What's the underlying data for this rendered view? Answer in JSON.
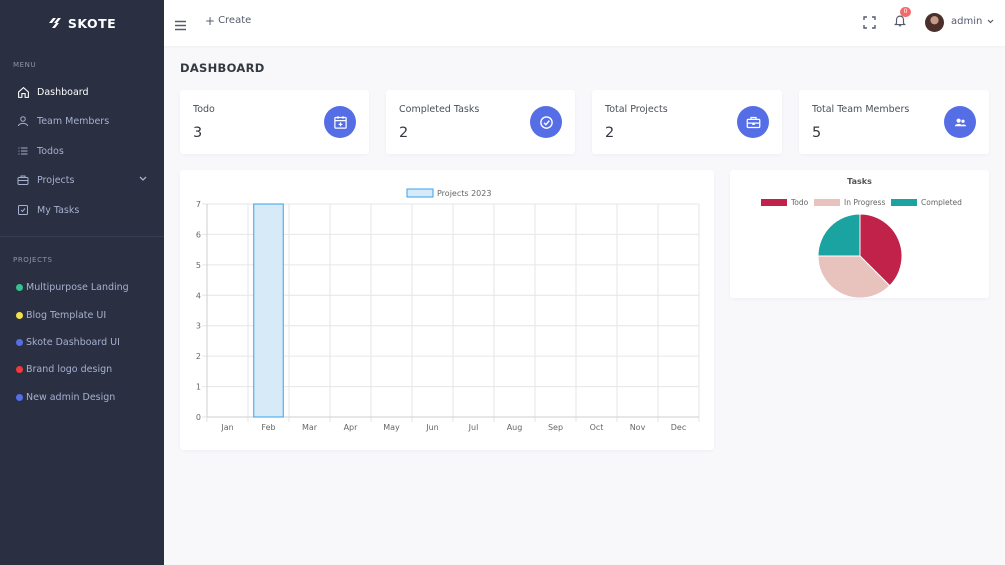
{
  "brand": {
    "name": "SKOTE"
  },
  "sidebar": {
    "menu_title": "MENU",
    "items": [
      {
        "label": "Dashboard",
        "icon": "home-icon",
        "active": true
      },
      {
        "label": "Team Members",
        "icon": "user-icon"
      },
      {
        "label": "Todos",
        "icon": "list-icon"
      },
      {
        "label": "Projects",
        "icon": "briefcase-icon",
        "has_submenu": true
      },
      {
        "label": "My Tasks",
        "icon": "task-checkbox-icon"
      }
    ],
    "projects_title": "PROJECTS",
    "projects": [
      {
        "label": "Multipurpose Landing",
        "color": "#34c38f"
      },
      {
        "label": "Blog Template UI",
        "color": "#f1e14b"
      },
      {
        "label": "Skote Dashboard UI",
        "color": "#556ee6"
      },
      {
        "label": "Brand logo design",
        "color": "#f23a3a"
      },
      {
        "label": "New admin Design",
        "color": "#556ee6"
      }
    ]
  },
  "topbar": {
    "create_label": "Create",
    "notification_count": "0",
    "user_name": "admin"
  },
  "page": {
    "title": "DASHBOARD"
  },
  "stats": [
    {
      "label": "Todo",
      "value": "3",
      "icon": "calendar-plus-icon"
    },
    {
      "label": "Completed Tasks",
      "value": "2",
      "icon": "check-circle-icon"
    },
    {
      "label": "Total Projects",
      "value": "2",
      "icon": "briefcase-icon"
    },
    {
      "label": "Total Team Members",
      "value": "5",
      "icon": "group-icon"
    }
  ],
  "colors": {
    "accent": "#556ee6",
    "sidebar": "#2a3042",
    "bar_fill": "#d6eaf8",
    "bar_stroke": "#36a2eb"
  },
  "chart_data": [
    {
      "type": "bar",
      "title": "",
      "categories": [
        "Jan",
        "Feb",
        "Mar",
        "Apr",
        "May",
        "Jun",
        "Jul",
        "Aug",
        "Sep",
        "Oct",
        "Nov",
        "Dec"
      ],
      "series": [
        {
          "name": "Projects 2023",
          "values": [
            0,
            7,
            0,
            0,
            0,
            0,
            0,
            0,
            0,
            0,
            0,
            0
          ]
        }
      ],
      "ylim": [
        0,
        7
      ],
      "yticks": [
        "0",
        "1",
        "2",
        "3",
        "4",
        "5",
        "6",
        "7"
      ],
      "grid": true,
      "legend": "top"
    },
    {
      "type": "pie",
      "title": "Tasks",
      "labels": [
        "Todo",
        "In Progress",
        "Completed"
      ],
      "values": [
        3,
        3,
        2
      ],
      "colors": [
        "#c0224a",
        "#e8c2bd",
        "#1aa3a1"
      ],
      "legend": "top"
    }
  ]
}
